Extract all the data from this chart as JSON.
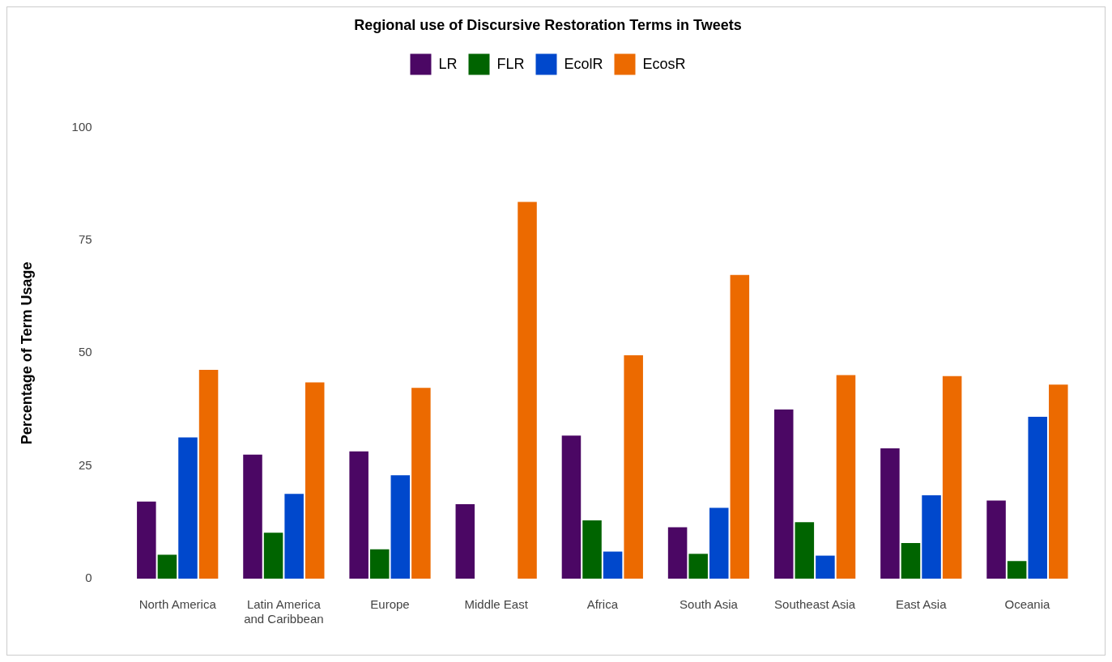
{
  "chart_data": {
    "type": "bar",
    "title": "Regional use of Discursive Restoration Terms in Tweets",
    "ylabel": "Percentage of Term Usage",
    "categories": [
      "North America",
      "Latin America and Caribbean",
      "Europe",
      "Middle East",
      "Africa",
      "South Asia",
      "Southeast Asia",
      "East Asia",
      "Oceania"
    ],
    "series": [
      {
        "name": "LR",
        "color": "#4b0764",
        "values": [
          17.1,
          27.5,
          28.2,
          16.5,
          31.7,
          11.4,
          37.5,
          28.9,
          17.3
        ]
      },
      {
        "name": "FLR",
        "color": "#006400",
        "values": [
          5.3,
          10.2,
          6.5,
          0,
          12.9,
          5.5,
          12.5,
          7.9,
          3.9
        ]
      },
      {
        "name": "EcolR",
        "color": "#0048cc",
        "values": [
          31.3,
          18.8,
          22.9,
          0,
          6.0,
          15.7,
          5.1,
          18.5,
          35.9
        ]
      },
      {
        "name": "EcosR",
        "color": "#ec6a00",
        "values": [
          46.3,
          43.5,
          42.3,
          83.5,
          49.5,
          67.3,
          45.1,
          44.9,
          43.0
        ]
      }
    ],
    "ylim": [
      0,
      100
    ],
    "yticks": [
      0,
      25,
      50,
      75,
      100
    ],
    "grid": false,
    "legend": "top"
  }
}
